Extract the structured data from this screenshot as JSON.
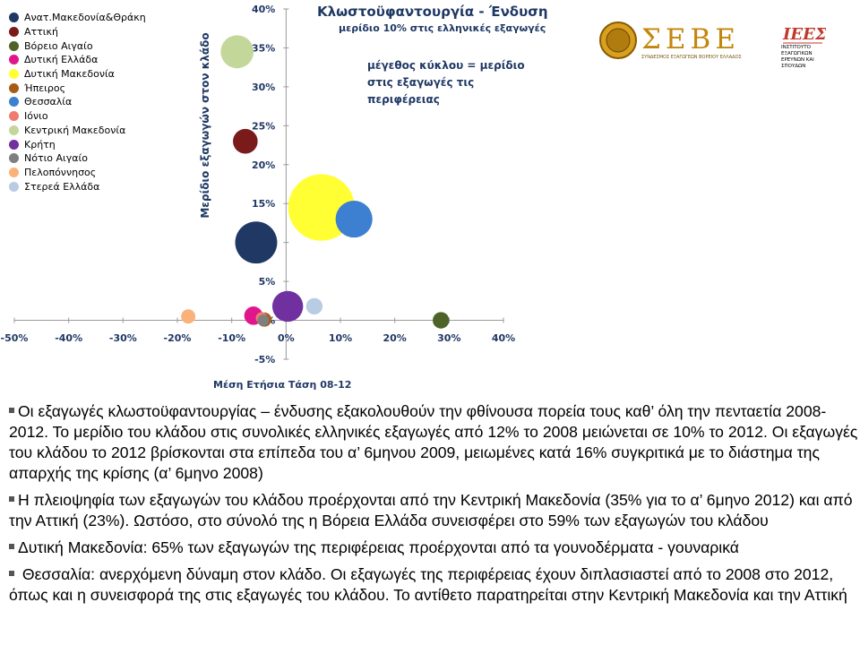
{
  "chart_data": {
    "type": "scatter",
    "title": "Κλωστοϋφαντουργία - Ένδυση",
    "subtitle": "μερίδιο 10% στις ελληνικές εξαγωγές",
    "size_note": "μέγεθος κύκλου = μερίδιο στις εξαγωγές τις περιφέρειας",
    "xlabel": "Μέση Ετήσια Τάση 08-12",
    "ylabel": "Μερίδιο εξαγωγών στον κλάδο",
    "xlim": [
      -50,
      40
    ],
    "ylim": [
      -5,
      40
    ],
    "x_ticks": [
      "-50%",
      "-40%",
      "-30%",
      "-20%",
      "-10%",
      "0%",
      "10%",
      "20%",
      "30%",
      "40%"
    ],
    "y_ticks": [
      "-5%",
      "0%",
      "5%",
      "10%",
      "15%",
      "20%",
      "25%",
      "30%",
      "35%",
      "40%"
    ],
    "grid": false,
    "legend_position": "left",
    "size_unit": "μερίδιο στις εξαγωγές της περιφέρειας",
    "series": [
      {
        "name": "Ανατ.Μακεδονία&Θράκη",
        "color": "#1f3864",
        "x": -5.5,
        "y": 10.0,
        "size": 26
      },
      {
        "name": "Αττική",
        "color": "#7b1a1a",
        "x": -7.5,
        "y": 23.0,
        "size": 9
      },
      {
        "name": "Βόρειο Αιγαίο",
        "color": "#4f6228",
        "x": 28.5,
        "y": 0.0,
        "size": 4
      },
      {
        "name": "Δυτική Ελλάδα",
        "color": "#e0168c",
        "x": -6.0,
        "y": 0.6,
        "size": 5
      },
      {
        "name": "Δυτική Μακεδονία",
        "color": "#ffff33",
        "x": 6.5,
        "y": 14.5,
        "size": 65
      },
      {
        "name": "Ήπειρος",
        "color": "#a65c14",
        "x": -4.0,
        "y": 0.1,
        "size": 3
      },
      {
        "name": "Θεσσαλία",
        "color": "#3d7fd1",
        "x": 12.5,
        "y": 13.0,
        "size": 20
      },
      {
        "name": "Ιόνιο",
        "color": "#f07c6e",
        "x": -4.5,
        "y": 0.3,
        "size": 2
      },
      {
        "name": "Κεντρική Μακεδονία",
        "color": "#c4d79b",
        "x": -9.0,
        "y": 34.5,
        "size": 16
      },
      {
        "name": "Κρήτη",
        "color": "#7030a0",
        "x": 0.3,
        "y": 1.8,
        "size": 14
      },
      {
        "name": "Νότιο Αιγαίο",
        "color": "#7f7f7f",
        "x": -4.2,
        "y": 0.0,
        "size": 2
      },
      {
        "name": "Πελοπόννησος",
        "color": "#fab27a",
        "x": -18.0,
        "y": 0.5,
        "size": 3
      },
      {
        "name": "Στερεά Ελλάδα",
        "color": "#b8cce4",
        "x": 5.2,
        "y": 1.8,
        "size": 4
      }
    ]
  },
  "logos": {
    "seve_text": "ΣΕΒΕ",
    "seve_caption": "ΣΥΝΔΕΣΜΟΣ ΕΞΑΓΩΓΕΩΝ ΒΟΡΕΙΟΥ ΕΛΛΑΔΟΣ",
    "inst_abbr": "ΙΕΕΣ",
    "inst_caption": "ΙΝΣΤΙΤΟΥΤΟ ΕΞΑΓΩΓΙΚΩΝ ΕΡΕΥΝΩΝ ΚΑΙ ΣΠΟΥΔΩΝ"
  },
  "paragraphs": [
    "Οι εξαγωγές κλωστοϋφαντουργίας – ένδυσης εξακολουθούν την φθίνουσα πορεία τους καθ’ όλη την πενταετία 2008-2012. Το μερίδιο του κλάδου στις συνολικές ελληνικές εξαγωγές από 12% το 2008 μειώνεται σε 10% το 2012. Οι εξαγωγές του κλάδου το 2012 βρίσκονται στα επίπεδα του α’ 6μηνου 2009, μειωμένες κατά 16% συγκριτικά με το διάστημα της απαρχής της κρίσης (α’ 6μηνο 2008)",
    "Η πλειοψηφία των εξαγωγών του κλάδου προέρχονται από την Κεντρική Μακεδονία (35% για το α’ 6μηνο 2012) και από την Αττική (23%). Ωστόσο, στο σύνολό της η Βόρεια Ελλάδα συνεισφέρει στο 59% των εξαγωγών του κλάδου",
    "Δυτική Μακεδονία: 65% των εξαγωγών της περιφέρειας προέρχονται από τα γουνοδέρματα - γουναρικά",
    " Θεσσαλία: ανερχόμενη δύναμη στον κλάδο. Οι εξαγωγές της περιφέρειας έχουν διπλασιαστεί από το 2008 στο 2012, όπως και η συνεισφορά της στις εξαγωγές του κλάδου. Το αντίθετο παρατηρείται στην Κεντρική Μακεδονία και την Αττική"
  ]
}
